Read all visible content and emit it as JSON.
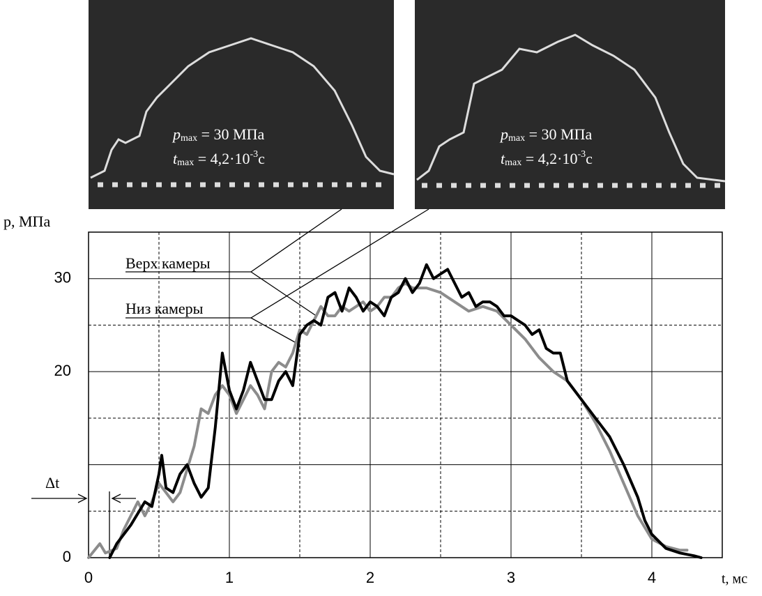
{
  "chart_data": {
    "type": "line",
    "ylabel": "p, МПа",
    "xlabel": "t, мс",
    "delta_label": "Δt",
    "xlim": [
      0,
      4.5
    ],
    "ylim": [
      0,
      35
    ],
    "xticks": [
      0,
      1,
      2,
      3,
      4
    ],
    "yticks": [
      0,
      20,
      30
    ],
    "xgrid_major": [
      1,
      2,
      3,
      4
    ],
    "xgrid_minor": [
      0.5,
      1.5,
      2.5,
      3.5
    ],
    "ygrid_major": [
      10,
      20,
      30
    ],
    "ygrid_minor": [
      5,
      15,
      25
    ],
    "series": [
      {
        "name": "Верх камеры",
        "color": "#000000",
        "x": [
          0.15,
          0.2,
          0.3,
          0.4,
          0.45,
          0.5,
          0.52,
          0.55,
          0.6,
          0.65,
          0.7,
          0.75,
          0.8,
          0.85,
          0.9,
          0.95,
          1.0,
          1.05,
          1.1,
          1.15,
          1.2,
          1.25,
          1.3,
          1.35,
          1.4,
          1.45,
          1.5,
          1.55,
          1.6,
          1.65,
          1.7,
          1.75,
          1.8,
          1.85,
          1.9,
          1.95,
          2.0,
          2.05,
          2.1,
          2.15,
          2.2,
          2.25,
          2.3,
          2.35,
          2.4,
          2.45,
          2.5,
          2.55,
          2.6,
          2.65,
          2.7,
          2.75,
          2.8,
          2.85,
          2.9,
          2.95,
          3.0,
          3.05,
          3.1,
          3.15,
          3.2,
          3.25,
          3.3,
          3.35,
          3.4,
          3.5,
          3.6,
          3.7,
          3.8,
          3.9,
          3.95,
          4.0,
          4.1,
          4.2,
          4.3,
          4.35
        ],
        "values": [
          0,
          1.5,
          3.5,
          6,
          5.5,
          9,
          11,
          7.5,
          7,
          9,
          10,
          8,
          6.5,
          7.5,
          14,
          22,
          18,
          16,
          18,
          21,
          19,
          17,
          17,
          19,
          20,
          18.5,
          24,
          25,
          25.5,
          25,
          28,
          28.5,
          26.5,
          29,
          28,
          26.5,
          27.5,
          27,
          26,
          28,
          28.5,
          30,
          28.5,
          29.5,
          31.5,
          30,
          30.5,
          31,
          29.5,
          28,
          28.5,
          27,
          27.5,
          27.5,
          27,
          26,
          26,
          25.5,
          25,
          24,
          24.5,
          22.5,
          22,
          22,
          19,
          17,
          15,
          13,
          10,
          6.5,
          4,
          2.5,
          1,
          0.5,
          0.2,
          0
        ]
      },
      {
        "name": "Низ камеры",
        "color": "#8c8c8c",
        "x": [
          0,
          0.08,
          0.12,
          0.2,
          0.25,
          0.3,
          0.35,
          0.4,
          0.45,
          0.5,
          0.55,
          0.6,
          0.65,
          0.7,
          0.75,
          0.8,
          0.85,
          0.9,
          0.95,
          1.0,
          1.05,
          1.1,
          1.15,
          1.2,
          1.25,
          1.3,
          1.35,
          1.4,
          1.45,
          1.5,
          1.55,
          1.6,
          1.65,
          1.7,
          1.75,
          1.8,
          1.85,
          1.9,
          1.95,
          2.0,
          2.05,
          2.1,
          2.15,
          2.2,
          2.25,
          2.3,
          2.4,
          2.5,
          2.6,
          2.7,
          2.8,
          2.9,
          3.0,
          3.1,
          3.2,
          3.3,
          3.4,
          3.5,
          3.6,
          3.7,
          3.8,
          3.9,
          4.0,
          4.1,
          4.2,
          4.25
        ],
        "values": [
          0,
          1.5,
          0.5,
          1,
          3,
          4.5,
          6,
          4.5,
          6,
          8,
          7,
          6,
          7,
          9.5,
          12,
          16,
          15.5,
          17.5,
          18.5,
          17.5,
          15.5,
          17,
          18.5,
          17.5,
          16,
          20,
          21,
          20.5,
          22,
          24.5,
          24,
          25.5,
          27,
          26,
          26,
          27,
          26.5,
          27,
          27.5,
          26.5,
          27,
          28,
          28,
          29,
          29.5,
          29,
          29,
          28.5,
          27.5,
          26.5,
          27,
          26.5,
          25,
          23.5,
          21.5,
          20,
          19,
          17,
          14.5,
          11.5,
          8,
          4.5,
          2,
          1.2,
          0.8,
          0.8
        ]
      }
    ]
  },
  "photos": [
    {
      "p_var": "p",
      "p_sub": "max",
      "p_rest": " = 30 МПа",
      "t_var": "t",
      "t_sub": "max",
      "t_rest": " = 4,2·10",
      "t_sup": "-3",
      "t_unit": "с"
    },
    {
      "p_var": "p",
      "p_sub": "max",
      "p_rest": " = 30 МПа",
      "t_var": "t",
      "t_sub": "max",
      "t_rest": " = 4,2·10",
      "t_sup": "-3",
      "t_unit": "с"
    }
  ]
}
